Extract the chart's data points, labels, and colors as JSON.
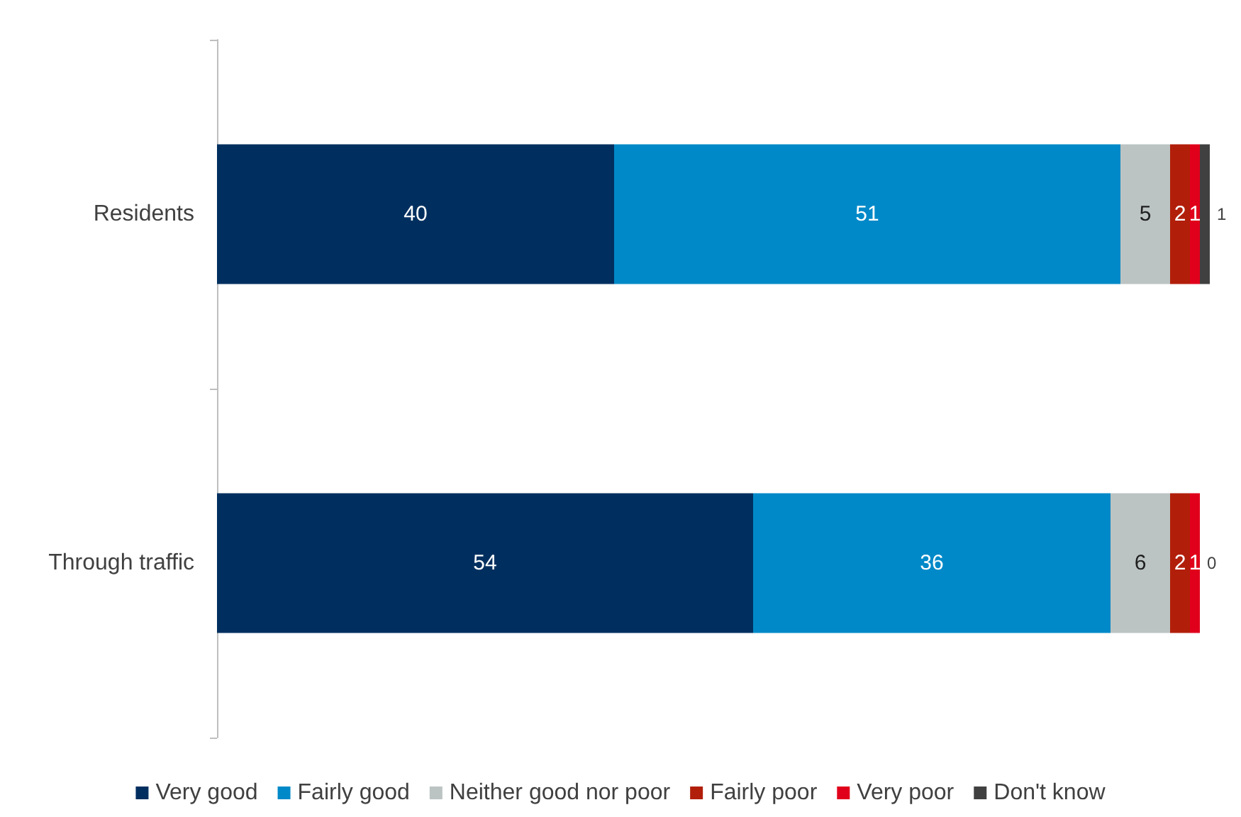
{
  "chart_data": {
    "type": "bar",
    "orientation": "horizontal",
    "stacked": true,
    "data_labels": true,
    "legend": "bottom",
    "categories": [
      "Residents",
      "Through traffic"
    ],
    "series": [
      {
        "name": "Very good",
        "color": "#002f5f",
        "values": [
          40,
          54
        ]
      },
      {
        "name": "Fairly good",
        "color": "#0089c8",
        "values": [
          51,
          36
        ]
      },
      {
        "name": "Neither good nor poor",
        "color": "#bcc3c3",
        "values": [
          5,
          6
        ]
      },
      {
        "name": "Fairly poor",
        "color": "#b11f0a",
        "values": [
          2,
          2
        ]
      },
      {
        "name": "Very poor",
        "color": "#e0001b",
        "values": [
          1,
          1
        ]
      },
      {
        "name": "Don't know",
        "color": "#404040",
        "values": [
          1,
          0
        ]
      }
    ]
  }
}
